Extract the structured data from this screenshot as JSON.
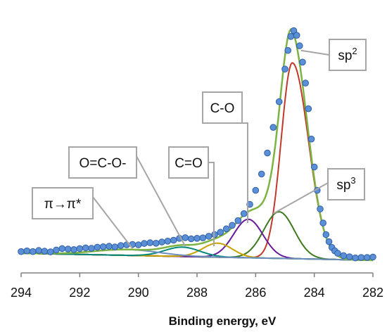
{
  "chart_data": {
    "type": "line",
    "xlabel": "Binding energy, eV",
    "xlim": [
      294,
      282
    ],
    "x_reversed": true,
    "ylim": [
      0,
      1.05
    ],
    "y_axis_labels_shown": false,
    "grid": false,
    "x_ticks": [
      294,
      292,
      290,
      288,
      286,
      284,
      282
    ],
    "x_tick_labels": [
      "294",
      "292",
      "290",
      "288",
      "286",
      "284",
      "282"
    ],
    "components": [
      {
        "name": "sp2",
        "center": 284.75,
        "height": 0.84,
        "width_low": 0.55,
        "width_high": 0.38,
        "color": "#c0392b"
      },
      {
        "name": "sp3",
        "center": 285.2,
        "height": 0.2,
        "width": 0.52,
        "color": "#3d7a1e"
      },
      {
        "name": "C-O",
        "center": 286.25,
        "height": 0.165,
        "width": 0.5,
        "color": "#6a1b9a"
      },
      {
        "name": "C=O",
        "center": 287.3,
        "height": 0.06,
        "width": 0.5,
        "color": "#c8a200"
      },
      {
        "name": "O=C-O-",
        "center": 288.5,
        "height": 0.04,
        "width": 0.6,
        "color": "#00897b"
      },
      {
        "name": "pi-pi*",
        "center": 290.4,
        "height": 0.025,
        "width": 1.1,
        "color": "#6c8ebf"
      }
    ],
    "background": {
      "low_end": 0.0,
      "high_end": 0.03,
      "color": "#4b4ea6"
    },
    "envelope_color": "#7cb342",
    "experimental_points": [
      {
        "x": 294.0,
        "y": 0.037
      },
      {
        "x": 293.8,
        "y": 0.04
      },
      {
        "x": 293.6,
        "y": 0.037
      },
      {
        "x": 293.4,
        "y": 0.042
      },
      {
        "x": 293.2,
        "y": 0.039
      },
      {
        "x": 293.0,
        "y": 0.036
      },
      {
        "x": 292.8,
        "y": 0.044
      },
      {
        "x": 292.6,
        "y": 0.05
      },
      {
        "x": 292.4,
        "y": 0.048
      },
      {
        "x": 292.2,
        "y": 0.046
      },
      {
        "x": 292.0,
        "y": 0.05
      },
      {
        "x": 291.8,
        "y": 0.053
      },
      {
        "x": 291.6,
        "y": 0.051
      },
      {
        "x": 291.4,
        "y": 0.056
      },
      {
        "x": 291.2,
        "y": 0.058
      },
      {
        "x": 291.0,
        "y": 0.06
      },
      {
        "x": 290.8,
        "y": 0.057
      },
      {
        "x": 290.6,
        "y": 0.063
      },
      {
        "x": 290.4,
        "y": 0.066
      },
      {
        "x": 290.2,
        "y": 0.068
      },
      {
        "x": 290.0,
        "y": 0.066
      },
      {
        "x": 289.8,
        "y": 0.072
      },
      {
        "x": 289.6,
        "y": 0.075
      },
      {
        "x": 289.4,
        "y": 0.073
      },
      {
        "x": 289.2,
        "y": 0.078
      },
      {
        "x": 289.0,
        "y": 0.082
      },
      {
        "x": 288.8,
        "y": 0.086
      },
      {
        "x": 288.6,
        "y": 0.094
      },
      {
        "x": 288.4,
        "y": 0.097
      },
      {
        "x": 288.2,
        "y": 0.092
      },
      {
        "x": 288.0,
        "y": 0.094
      },
      {
        "x": 287.8,
        "y": 0.096
      },
      {
        "x": 287.6,
        "y": 0.103
      },
      {
        "x": 287.4,
        "y": 0.11
      },
      {
        "x": 287.2,
        "y": 0.12
      },
      {
        "x": 287.0,
        "y": 0.135
      },
      {
        "x": 286.8,
        "y": 0.15
      },
      {
        "x": 286.6,
        "y": 0.17
      },
      {
        "x": 286.4,
        "y": 0.2
      },
      {
        "x": 286.2,
        "y": 0.24
      },
      {
        "x": 286.0,
        "y": 0.3
      },
      {
        "x": 285.8,
        "y": 0.37
      },
      {
        "x": 285.6,
        "y": 0.46
      },
      {
        "x": 285.4,
        "y": 0.57
      },
      {
        "x": 285.2,
        "y": 0.68
      },
      {
        "x": 285.0,
        "y": 0.82
      },
      {
        "x": 284.9,
        "y": 0.9
      },
      {
        "x": 284.8,
        "y": 0.96
      },
      {
        "x": 284.7,
        "y": 0.985
      },
      {
        "x": 284.6,
        "y": 0.965
      },
      {
        "x": 284.5,
        "y": 0.92
      },
      {
        "x": 284.4,
        "y": 0.85
      },
      {
        "x": 284.3,
        "y": 0.76
      },
      {
        "x": 284.2,
        "y": 0.65
      },
      {
        "x": 284.1,
        "y": 0.52
      },
      {
        "x": 284.0,
        "y": 0.4
      },
      {
        "x": 283.9,
        "y": 0.3
      },
      {
        "x": 283.8,
        "y": 0.22
      },
      {
        "x": 283.7,
        "y": 0.16
      },
      {
        "x": 283.6,
        "y": 0.11
      },
      {
        "x": 283.5,
        "y": 0.08
      },
      {
        "x": 283.4,
        "y": 0.055
      },
      {
        "x": 283.3,
        "y": 0.04
      },
      {
        "x": 283.2,
        "y": 0.03
      },
      {
        "x": 283.0,
        "y": 0.02
      },
      {
        "x": 282.8,
        "y": 0.015
      },
      {
        "x": 282.6,
        "y": 0.01
      },
      {
        "x": 282.4,
        "y": 0.012
      },
      {
        "x": 282.2,
        "y": 0.012
      },
      {
        "x": 282.0,
        "y": 0.014
      }
    ],
    "marker_color": "#5b8fd6",
    "annotations": [
      {
        "name": "sp2",
        "text": "sp",
        "sup": "2",
        "target_x": 284.55,
        "target_y": 0.9
      },
      {
        "name": "c-o",
        "text": "C-O",
        "sup": "",
        "target_x": 286.25,
        "target_y": 0.16
      },
      {
        "name": "c-double-o",
        "text": "C=O",
        "sup": "",
        "target_x": 287.3,
        "target_y": 0.06
      },
      {
        "name": "o-c-o",
        "text": "O=C-O-",
        "sup": "",
        "target_x": 288.4,
        "target_y": 0.06
      },
      {
        "name": "pi-pi",
        "text": "π→π*",
        "sup": "",
        "target_x": 290.2,
        "target_y": 0.05
      },
      {
        "name": "sp3",
        "text": "sp",
        "sup": "3",
        "target_x": 285.4,
        "target_y": 0.2
      }
    ]
  }
}
